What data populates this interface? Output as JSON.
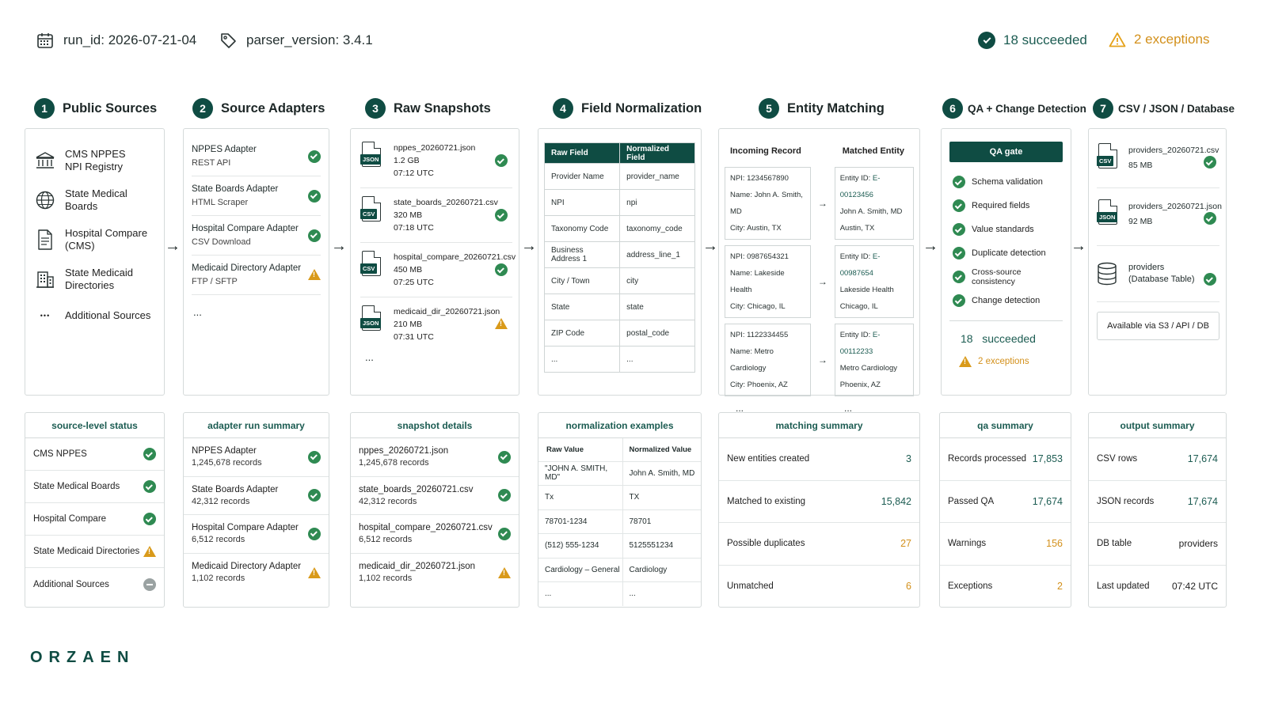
{
  "header": {
    "run_id": "run_id:  2026-07-21-04",
    "parser_version": "parser_version:  3.4.1",
    "succeeded": "18 succeeded",
    "exceptions": "2 exceptions"
  },
  "steps": [
    {
      "num": "1",
      "title": "Public Sources"
    },
    {
      "num": "2",
      "title": "Source Adapters"
    },
    {
      "num": "3",
      "title": "Raw  Snapshots"
    },
    {
      "num": "4",
      "title": "Field Normalization"
    },
    {
      "num": "5",
      "title": "Entity Matching"
    },
    {
      "num": "6",
      "title": "QA + Change Detection"
    },
    {
      "num": "7",
      "title": "CSV / JSON / Database"
    }
  ],
  "sources": {
    "items": [
      {
        "l1": "CMS NPPES",
        "l2": "NPI Registry",
        "icon": "bank-icon"
      },
      {
        "l1": "State Medical",
        "l2": "Boards",
        "icon": "globe-icon"
      },
      {
        "l1": "Hospital Compare",
        "l2": "(CMS)",
        "icon": "document-icon"
      },
      {
        "l1": "State Medicaid",
        "l2": "Directories",
        "icon": "building-icon"
      }
    ],
    "more": "Additional Sources",
    "dots": "•••"
  },
  "adapters": {
    "items": [
      {
        "name": "NPPES Adapter",
        "type": "REST API",
        "status": "ok"
      },
      {
        "name": "State Boards Adapter",
        "type": "HTML Scraper",
        "status": "ok"
      },
      {
        "name": "Hospital Compare Adapter",
        "type": "CSV Download",
        "status": "ok"
      },
      {
        "name": "Medicaid Directory Adapter",
        "type": "FTP / SFTP",
        "status": "warn"
      }
    ],
    "more": "..."
  },
  "snapshots": {
    "items": [
      {
        "file": "nppes_20260721.json",
        "size": "1.2 GB",
        "time": "07:12 UTC",
        "tag": "JSON",
        "status": "ok"
      },
      {
        "file": "state_boards_20260721.csv",
        "size": "320 MB",
        "time": "07:18 UTC",
        "tag": "CSV",
        "status": "ok"
      },
      {
        "file": "hospital_compare_20260721.csv",
        "size": "450 MB",
        "time": "07:25 UTC",
        "tag": "CSV",
        "status": "ok"
      },
      {
        "file": "medicaid_dir_20260721.json",
        "size": "210 MB",
        "time": "07:31 UTC",
        "tag": "JSON",
        "status": "warn"
      }
    ],
    "more": "..."
  },
  "normalization": {
    "head_raw": "Raw Field",
    "head_norm": "Normalized Field",
    "rows": [
      [
        "Provider Name",
        "provider_name"
      ],
      [
        "NPI",
        "npi"
      ],
      [
        "Taxonomy Code",
        "taxonomy_code"
      ],
      [
        "Business Address 1",
        "address_line_1"
      ],
      [
        "City / Town",
        "city"
      ],
      [
        "State",
        "state"
      ],
      [
        "ZIP Code",
        "postal_code"
      ],
      [
        "...",
        "..."
      ]
    ]
  },
  "matching": {
    "head_in": "Incoming Record",
    "head_match": "Matched Entity",
    "records": [
      {
        "npi": "NPI:  1234567890",
        "name": "Name:  John A. Smith, MD",
        "city": "City:  Austin, TX",
        "eid_label": "Entity ID:",
        "eid": "E-00123456",
        "mname": "John A. Smith, MD",
        "mcity": "Austin, TX"
      },
      {
        "npi": "NPI:  0987654321",
        "name": "Name:  Lakeside Health",
        "city": "City:  Chicago, IL",
        "eid_label": "Entity ID:",
        "eid": "E-00987654",
        "mname": "Lakeside Health",
        "mcity": "Chicago, IL"
      },
      {
        "npi": "NPI:  1122334455",
        "name": "Name:  Metro Cardiology",
        "city": "City:  Phoenix, AZ",
        "eid_label": "Entity ID:",
        "eid": "E-00112233",
        "mname": "Metro Cardiology",
        "mcity": "Phoenix, AZ"
      }
    ],
    "more": "..."
  },
  "qa": {
    "gate": "QA gate",
    "checks": [
      "Schema validation",
      "Required fields",
      "Value standards",
      "Duplicate detection",
      "Cross-source consistency",
      "Change detection"
    ],
    "succeeded_num": "18",
    "succeeded_label": "succeeded",
    "exceptions": "2 exceptions"
  },
  "outputs": {
    "items": [
      {
        "file": "providers_20260721.csv",
        "size": "85 MB",
        "tag": "CSV"
      },
      {
        "file": "providers_20260721.json",
        "size": "92 MB",
        "tag": "JSON"
      }
    ],
    "db_name": "providers",
    "db_sub": "(Database Table)",
    "available": "Available via S3 / API / DB"
  },
  "summaries": {
    "source": {
      "title": "source-level status",
      "rows": [
        {
          "label": "CMS NPPES",
          "status": "ok"
        },
        {
          "label": "State Medical Boards",
          "status": "ok"
        },
        {
          "label": "Hospital Compare",
          "status": "ok"
        },
        {
          "label": "State Medicaid Directories",
          "status": "warn"
        },
        {
          "label": "Additional Sources",
          "status": "neutral"
        }
      ]
    },
    "adapter": {
      "title": "adapter run summary",
      "rows": [
        {
          "name": "NPPES Adapter",
          "records": "1,245,678 records",
          "status": "ok"
        },
        {
          "name": "State Boards Adapter",
          "records": "42,312 records",
          "status": "ok"
        },
        {
          "name": "Hospital Compare Adapter",
          "records": "6,512 records",
          "status": "ok"
        },
        {
          "name": "Medicaid Directory Adapter",
          "records": "1,102 records",
          "status": "warn"
        }
      ]
    },
    "snapshot": {
      "title": "snapshot details",
      "rows": [
        {
          "name": "nppes_20260721.json",
          "records": "1,245,678 records",
          "status": "ok"
        },
        {
          "name": "state_boards_20260721.csv",
          "records": "42,312 records",
          "status": "ok"
        },
        {
          "name": "hospital_compare_20260721.csv",
          "records": "6,512 records",
          "status": "ok"
        },
        {
          "name": "medicaid_dir_20260721.json",
          "records": "1,102 records",
          "status": "warn"
        }
      ]
    },
    "norm": {
      "title": "normalization examples",
      "head_raw": "Raw Value",
      "head_norm": "Normalized Value",
      "rows": [
        [
          "\"JOHN A. SMITH, MD\"",
          "John A. Smith, MD"
        ],
        [
          "Tx",
          "TX"
        ],
        [
          "78701-1234",
          "78701"
        ],
        [
          "(512) 555-1234",
          "5125551234"
        ],
        [
          "Cardiology – General",
          "Cardiology"
        ],
        [
          "...",
          "..."
        ]
      ]
    },
    "match": {
      "title": "matching summary",
      "rows": [
        {
          "label": "New entities created",
          "value": "3",
          "tone": "green"
        },
        {
          "label": "Matched to existing",
          "value": "15,842",
          "tone": "green"
        },
        {
          "label": "Possible duplicates",
          "value": "27",
          "tone": "amber"
        },
        {
          "label": "Unmatched",
          "value": "6",
          "tone": "amber"
        }
      ]
    },
    "qa": {
      "title": "qa summary",
      "rows": [
        {
          "label": "Records processed",
          "value": "17,853",
          "tone": "green"
        },
        {
          "label": "Passed QA",
          "value": "17,674",
          "tone": "green"
        },
        {
          "label": "Warnings",
          "value": "156",
          "tone": "amber"
        },
        {
          "label": "Exceptions",
          "value": "2",
          "tone": "amber"
        }
      ]
    },
    "output": {
      "title": "output summary",
      "rows": [
        {
          "label": "CSV rows",
          "value": "17,674",
          "tone": "green"
        },
        {
          "label": "JSON records",
          "value": "17,674",
          "tone": "green"
        },
        {
          "label": "DB table",
          "value": "providers",
          "tone": "plain"
        },
        {
          "label": "Last updated",
          "value": "07:42 UTC",
          "tone": "plain"
        }
      ]
    }
  },
  "brand": "ORZAEN",
  "colors": {
    "accent": "#0f4c43",
    "success": "#2f8a52",
    "warning": "#e5a21b"
  }
}
